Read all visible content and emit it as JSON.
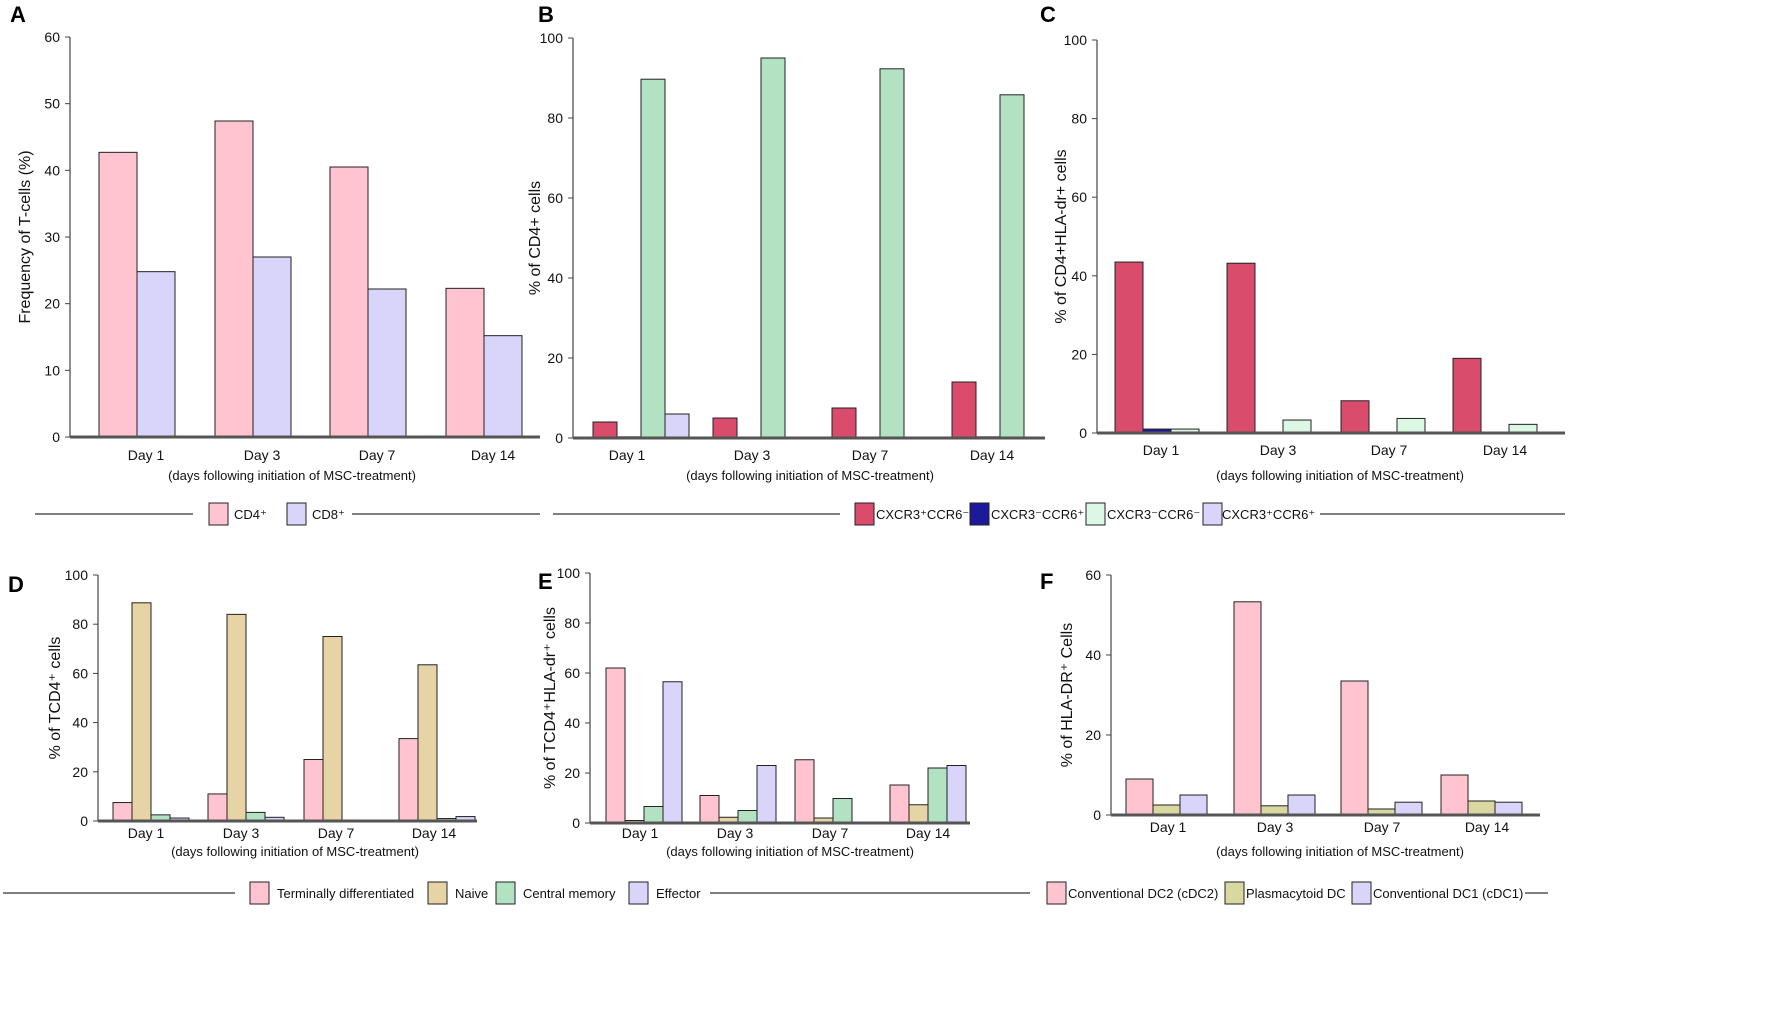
{
  "chart_data": [
    {
      "panel": "A",
      "type": "bar",
      "categories": [
        "Day 1",
        "Day 3",
        "Day 7",
        "Day 14"
      ],
      "xlabel": "(days following initiation of MSC-treatment)",
      "ylabel": "Frequency of T-cells (%)",
      "ylim": [
        0,
        60
      ],
      "y_ticks": [
        "0",
        "10",
        "20",
        "30",
        "40",
        "50",
        "60"
      ],
      "series": [
        {
          "name": "CD4⁺",
          "color": "#ffc4d0",
          "values": [
            42.7,
            47.4,
            40.5,
            22.3
          ]
        },
        {
          "name": "CD8⁺",
          "color": "#d8d4fa",
          "values": [
            24.8,
            27.0,
            22.2,
            15.2
          ]
        }
      ]
    },
    {
      "panel": "B",
      "type": "bar",
      "categories": [
        "Day 1",
        "Day 3",
        "Day 7",
        "Day 14"
      ],
      "xlabel": "(days following initiation of MSC-treatment)",
      "ylabel": "% of CD4+ cells",
      "ylim": [
        0,
        100
      ],
      "y_ticks": [
        "0",
        "20",
        "40",
        "60",
        "80",
        "100"
      ],
      "series": [
        {
          "name": "CXCR3⁺CCR6⁻",
          "color": "#d94c6b",
          "values": [
            4,
            5,
            7.5,
            14
          ]
        },
        {
          "name": "CXCR3⁻CCR6⁺",
          "color": "#1a1a9a",
          "values": [
            0.3,
            0,
            0.2,
            0.3
          ]
        },
        {
          "name": "CXCR3⁻CCR6⁻",
          "color": "#b3e2c3",
          "values": [
            89.7,
            95,
            92.3,
            85.8
          ]
        },
        {
          "name": "CXCR3⁺CCR6⁺",
          "color": "#d8d4fa",
          "values": [
            6,
            0,
            0,
            0
          ]
        }
      ]
    },
    {
      "panel": "C",
      "type": "bar",
      "categories": [
        "Day 1",
        "Day 3",
        "Day 7",
        "Day 14"
      ],
      "xlabel": "(days following initiation of MSC-treatment)",
      "ylabel": "% of CD4+HLA-dr+ cells",
      "ylim": [
        0,
        100
      ],
      "y_ticks": [
        "0",
        "20",
        "40",
        "60",
        "80",
        "100"
      ],
      "series": [
        {
          "name": "CXCR3⁺CCR6⁻",
          "color": "#d94c6b",
          "values": [
            43.5,
            43.2,
            8.2,
            19
          ]
        },
        {
          "name": "CXCR3⁻CCR6⁺",
          "color": "#1a1a9a",
          "values": [
            1,
            0,
            0,
            0
          ]
        },
        {
          "name": "CXCR3⁻CCR6⁻",
          "color": "#dcf7e4",
          "values": [
            1,
            3.3,
            3.7,
            2.2
          ]
        }
      ]
    },
    {
      "panel": "D",
      "type": "bar",
      "categories": [
        "Day 1",
        "Day 3",
        "Day 7",
        "Day 14"
      ],
      "xlabel": "(days following initiation of MSC-treatment)",
      "ylabel": "% of TCD4⁺ cells",
      "ylim": [
        0,
        100
      ],
      "y_ticks": [
        "0",
        "20",
        "40",
        "60",
        "80",
        "100"
      ],
      "series": [
        {
          "name": "Terminally differentiated",
          "color": "#ffc4d0",
          "values": [
            7.5,
            11,
            25,
            33.5
          ]
        },
        {
          "name": "Naive",
          "color": "#e6d4a6",
          "values": [
            88.7,
            84,
            75,
            63.5
          ]
        },
        {
          "name": "Central memory",
          "color": "#b3e2c3",
          "values": [
            2.5,
            3.5,
            0.3,
            1
          ]
        },
        {
          "name": "Effector",
          "color": "#d8d4fa",
          "values": [
            1.2,
            1.5,
            0,
            1.8
          ]
        }
      ]
    },
    {
      "panel": "E",
      "type": "bar",
      "categories": [
        "Day 1",
        "Day 3",
        "Day 7",
        "Day 14"
      ],
      "xlabel": "(days following initiation of MSC-treatment)",
      "ylabel": "% of  TCD4⁺HLA-dr⁺ cells",
      "ylim": [
        0,
        100
      ],
      "y_ticks": [
        "0",
        "20",
        "40",
        "60",
        "80",
        "100"
      ],
      "series": [
        {
          "name": "Terminally differentiated",
          "color": "#ffc4d0",
          "values": [
            62,
            11,
            25.3,
            15.2
          ]
        },
        {
          "name": "Naive",
          "color": "#e6d4a6",
          "values": [
            1,
            2.3,
            2,
            7.3
          ]
        },
        {
          "name": "Central memory",
          "color": "#b3e2c3",
          "values": [
            6.6,
            5,
            9.8,
            22
          ]
        },
        {
          "name": "Effector",
          "color": "#d8d4fa",
          "values": [
            56.5,
            23,
            0,
            23
          ]
        }
      ]
    },
    {
      "panel": "F",
      "type": "bar",
      "categories": [
        "Day 1",
        "Day 3",
        "Day 7",
        "Day 14"
      ],
      "xlabel": "(days following initiation of MSC-treatment)",
      "ylabel": "% of HLA-DR⁺ Cells",
      "ylim": [
        0,
        60
      ],
      "y_ticks": [
        "0",
        "20",
        "40",
        "60"
      ],
      "series": [
        {
          "name": "Conventional DC2 (cDC2)",
          "color": "#ffc4d0",
          "values": [
            9,
            53.3,
            33.5,
            10
          ]
        },
        {
          "name": "Plasmacytoid DC",
          "color": "#d8d8a0",
          "values": [
            2.5,
            2.3,
            1.5,
            3.5
          ]
        },
        {
          "name": "Conventional DC1 (cDC1)",
          "color": "#d8d4fa",
          "values": [
            5,
            5,
            3.2,
            3.2
          ]
        }
      ]
    }
  ],
  "legends": [
    {
      "items": [
        {
          "label": "CD4⁺",
          "color": "#ffc4d0"
        },
        {
          "label": "CD8⁺",
          "color": "#d8d4fa"
        }
      ]
    },
    {
      "items": [
        {
          "label": "CXCR3⁺CCR6⁻",
          "color": "#d94c6b"
        },
        {
          "label": "CXCR3⁻CCR6⁺",
          "color": "#1a1a9a"
        },
        {
          "label": "CXCR3⁻CCR6⁻",
          "color": "#dcf7e4"
        },
        {
          "label": "CXCR3⁺CCR6⁺",
          "color": "#d8d4fa"
        }
      ]
    },
    {
      "items": [
        {
          "label": "Terminally differentiated",
          "color": "#ffc4d0"
        },
        {
          "label": "Naive",
          "color": "#e6d4a6"
        },
        {
          "label": "Central memory",
          "color": "#b3e2c3"
        },
        {
          "label": "Effector",
          "color": "#d8d4fa"
        }
      ]
    },
    {
      "items": [
        {
          "label": "Conventional DC2 (cDC2)",
          "color": "#ffc4d0"
        },
        {
          "label": "Plasmacytoid DC",
          "color": "#d8d8a0"
        },
        {
          "label": "Conventional DC1 (cDC1)",
          "color": "#d8d4fa"
        }
      ]
    }
  ],
  "panel_letters": [
    "A",
    "B",
    "C",
    "D",
    "E",
    "F"
  ]
}
